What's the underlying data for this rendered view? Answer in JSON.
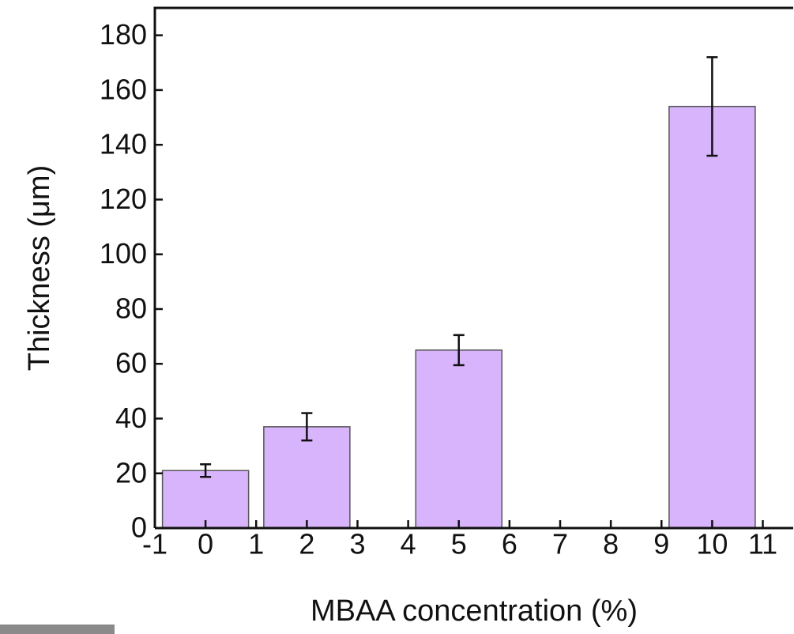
{
  "chart_data": {
    "type": "bar",
    "x": [
      0,
      2,
      5,
      10
    ],
    "values": [
      21,
      37,
      65,
      154
    ],
    "errors": [
      2.3,
      5,
      5.5,
      18
    ],
    "color": "#d8b4fc",
    "edge_color": "#555555",
    "xlim": [
      -1,
      11.6
    ],
    "xticks": [
      -1,
      0,
      1,
      2,
      3,
      4,
      5,
      6,
      7,
      8,
      9,
      10,
      11
    ],
    "ylim": [
      0,
      190
    ],
    "yticks": [
      0,
      20,
      40,
      60,
      80,
      100,
      120,
      140,
      160,
      180
    ],
    "xlabel": "MBAA concentration (%)",
    "ylabel": "Thickness (μm)"
  }
}
